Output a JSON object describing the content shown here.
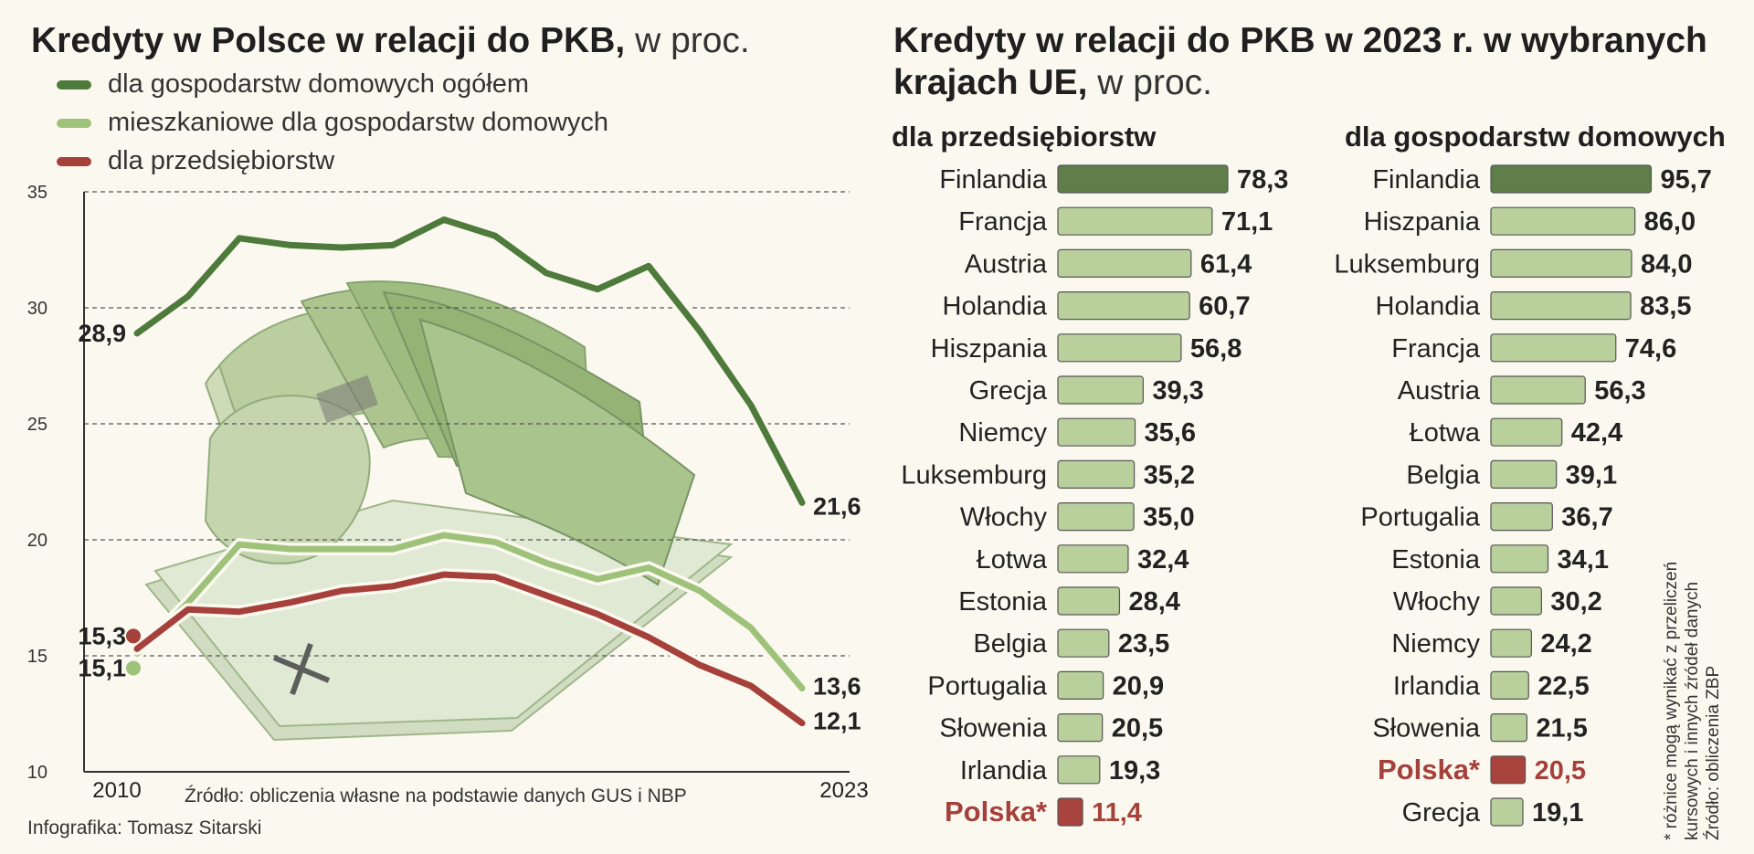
{
  "colors": {
    "dark_green": "#4e7a3c",
    "light_green": "#9fc27a",
    "red": "#a5403a",
    "bar_green": "#b9cf9c",
    "bar_dark": "#5f7e4a",
    "bar_red": "#a9433d"
  },
  "left": {
    "title_bold": "Kredyty w Polsce w relacji do PKB,",
    "title_light": " w proc.",
    "legend": [
      {
        "label": "dla gospodarstw domowych ogółem",
        "color": "#4e7a3c"
      },
      {
        "label": "mieszkaniowe dla gospodarstw domowych",
        "color": "#9fc27a"
      },
      {
        "label": "dla przedsiębiorstw",
        "color": "#a5403a"
      }
    ],
    "source": "Źródło: obliczenia własne na podstawie danych GUS i NBP",
    "credit": "Infografika: Tomasz Sitarski",
    "image_icon": "banknotes-illustration"
  },
  "right": {
    "title_line1_bold": "Kredyty w relacji do PKB w 2023 r. w wybranych",
    "title_line2_bold": "krajach UE,",
    "title_line2_light": " w proc.",
    "note_lines": [
      "* różnice mogą wynikać z przeliczeń",
      "kursowych i innych źródeł danych",
      "Źródło: obliczenia ZBP"
    ]
  },
  "chart_data": [
    {
      "type": "line",
      "title": "Kredyty w Polsce w relacji do PKB, w proc.",
      "x": [
        2010,
        2011,
        2012,
        2013,
        2014,
        2015,
        2016,
        2017,
        2018,
        2019,
        2020,
        2021,
        2022,
        2023
      ],
      "ylim": [
        10,
        35
      ],
      "yticks": [
        10,
        15,
        20,
        25,
        30,
        35
      ],
      "xtick_labels": [
        "2010",
        "2023"
      ],
      "grid": true,
      "series": [
        {
          "name": "dla gospodarstw domowych ogółem",
          "color": "#4e7a3c",
          "values": [
            28.9,
            30.5,
            33.0,
            32.7,
            32.6,
            32.7,
            33.8,
            33.1,
            31.5,
            30.8,
            31.8,
            29.0,
            25.8,
            21.6
          ],
          "start_label": "28,9",
          "end_label": "21,6"
        },
        {
          "name": "mieszkaniowe dla gospodarstw domowych",
          "color": "#9fc27a",
          "values": [
            15.1,
            17.3,
            19.8,
            19.6,
            19.6,
            19.6,
            20.2,
            19.9,
            19.0,
            18.3,
            18.8,
            17.8,
            16.2,
            13.6
          ],
          "start_label": "15,1",
          "end_label": "13,6"
        },
        {
          "name": "dla przedsiębiorstw",
          "color": "#a5403a",
          "values": [
            15.3,
            17.0,
            16.9,
            17.3,
            17.8,
            18.0,
            18.5,
            18.4,
            17.6,
            16.8,
            15.8,
            14.6,
            13.7,
            12.1
          ],
          "start_label": "15,3",
          "end_label": "12,1"
        }
      ]
    },
    {
      "type": "bar",
      "title": "dla przedsiębiorstw",
      "orientation": "horizontal",
      "categories": [
        "Finlandia",
        "Francja",
        "Austria",
        "Holandia",
        "Hiszpania",
        "Grecja",
        "Niemcy",
        "Luksemburg",
        "Włochy",
        "Łotwa",
        "Estonia",
        "Belgia",
        "Portugalia",
        "Słowenia",
        "Irlandia",
        "Polska*"
      ],
      "values": [
        78.3,
        71.1,
        61.4,
        60.7,
        56.8,
        39.3,
        35.6,
        35.2,
        35.0,
        32.4,
        28.4,
        23.5,
        20.9,
        20.5,
        19.3,
        11.4
      ],
      "labels": [
        "78,3",
        "71,1",
        "61,4",
        "60,7",
        "56,8",
        "39,3",
        "35,6",
        "35,2",
        "35,0",
        "32,4",
        "28,4",
        "23,5",
        "20,9",
        "20,5",
        "19,3",
        "11,4"
      ],
      "highlight": {
        "Finlandia": "top",
        "Polska*": "poland"
      },
      "xlim": [
        0,
        80
      ]
    },
    {
      "type": "bar",
      "title": "dla gospodarstw domowych",
      "orientation": "horizontal",
      "categories": [
        "Finlandia",
        "Hiszpania",
        "Luksemburg",
        "Holandia",
        "Francja",
        "Austria",
        "Łotwa",
        "Belgia",
        "Portugalia",
        "Estonia",
        "Włochy",
        "Niemcy",
        "Irlandia",
        "Słowenia",
        "Polska*",
        "Grecja"
      ],
      "values": [
        95.7,
        86.0,
        84.0,
        83.5,
        74.6,
        56.3,
        42.4,
        39.1,
        36.7,
        34.1,
        30.2,
        24.2,
        22.5,
        21.5,
        20.5,
        19.1
      ],
      "labels": [
        "95,7",
        "86,0",
        "84,0",
        "83,5",
        "74,6",
        "56,3",
        "42,4",
        "39,1",
        "36,7",
        "34,1",
        "30,2",
        "24,2",
        "22,5",
        "21,5",
        "20,5",
        "19,1"
      ],
      "highlight": {
        "Finlandia": "top",
        "Polska*": "poland"
      },
      "xlim": [
        0,
        96
      ]
    }
  ]
}
